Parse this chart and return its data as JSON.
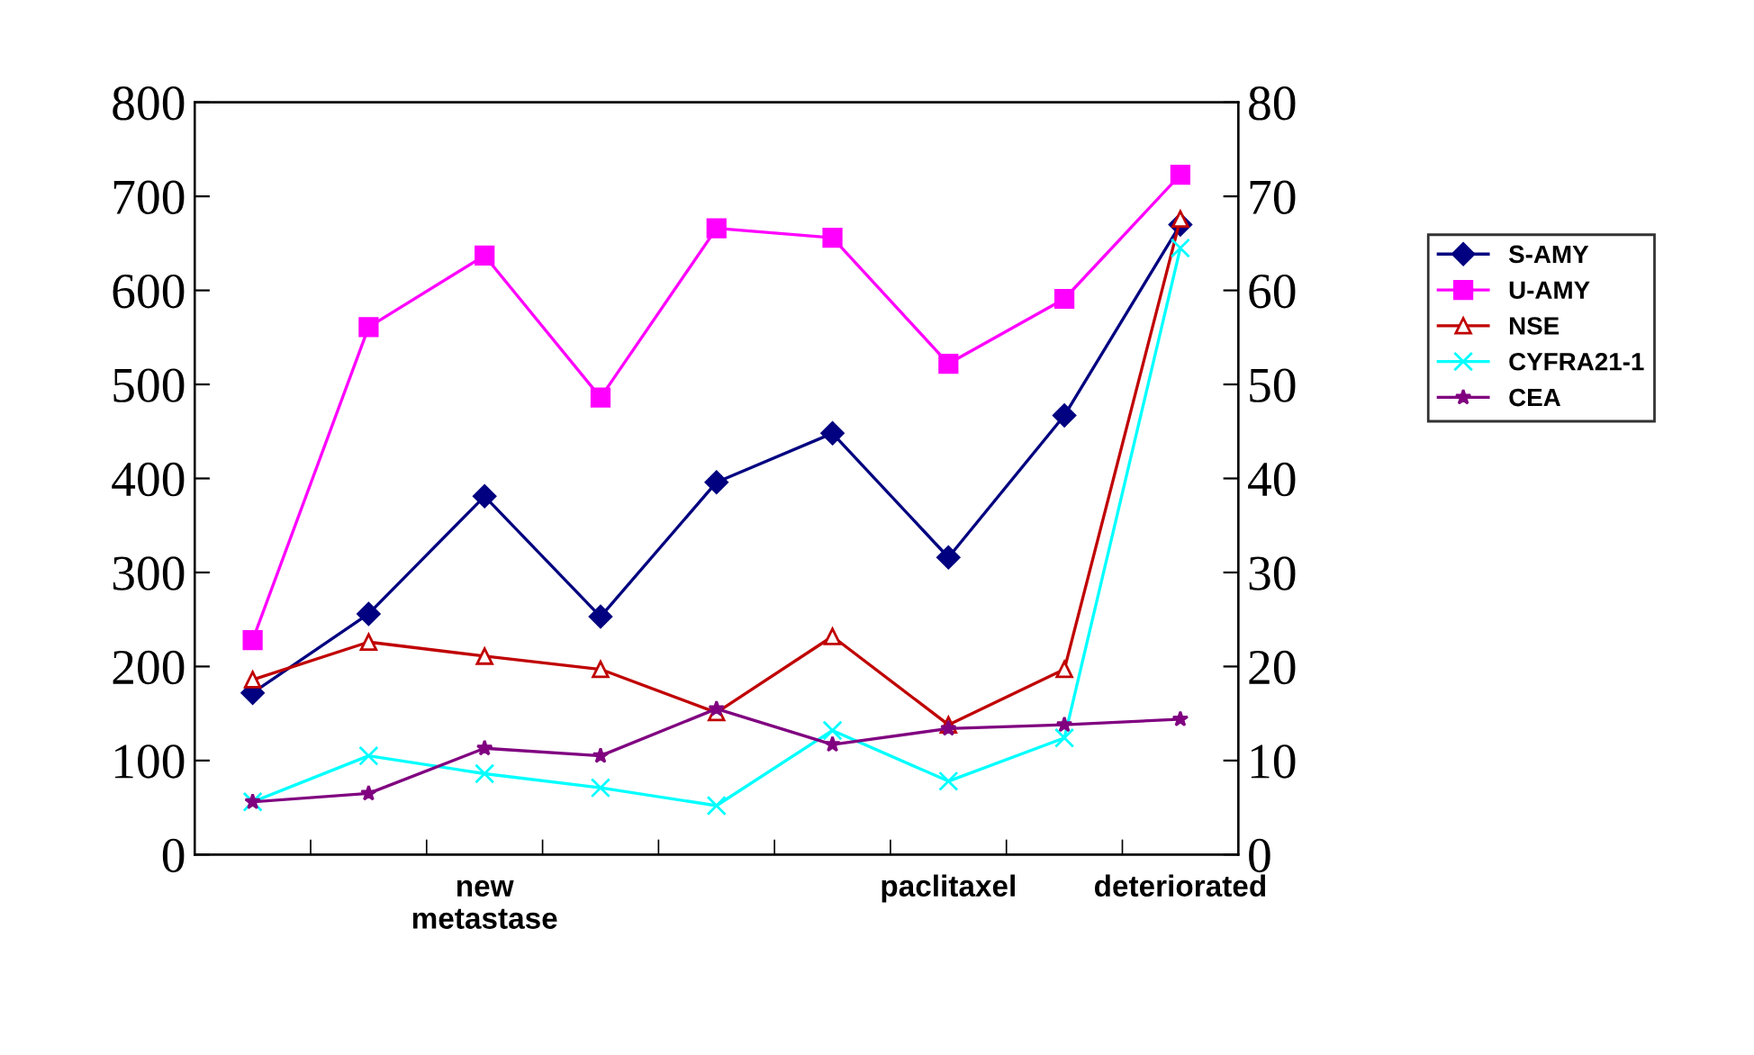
{
  "chart_data": {
    "type": "line",
    "categories": [
      null,
      null,
      "new\nmetastase",
      null,
      null,
      null,
      "paclitaxel",
      null,
      "deteriorated"
    ],
    "series": [
      {
        "name": "S-AMY",
        "color": "#000080",
        "marker": "diamond",
        "values": [
          172,
          256,
          381,
          253,
          396,
          448,
          316,
          467,
          670
        ]
      },
      {
        "name": "U-AMY",
        "color": "#ff00ff",
        "marker": "square",
        "values": [
          228,
          561,
          637,
          486,
          666,
          656,
          522,
          591,
          723
        ]
      },
      {
        "name": "NSE",
        "color": "#c00000",
        "marker": "triangle",
        "axis": "y2",
        "values": [
          18.6,
          22.6,
          21.1,
          19.7,
          15.1,
          23.2,
          13.8,
          19.7,
          67.6
        ]
      },
      {
        "name": "CYFRA21-1",
        "color": "#00ffff",
        "marker": "cross",
        "axis": "y2",
        "values": [
          5.6,
          10.5,
          8.6,
          7.1,
          5.2,
          13.2,
          7.8,
          12.4,
          64.5
        ]
      },
      {
        "name": "CEA",
        "color": "#800080",
        "marker": "star",
        "axis": "y2",
        "values": [
          5.6,
          6.5,
          11.3,
          10.5,
          15.5,
          11.7,
          13.4,
          13.8,
          14.4
        ]
      }
    ],
    "ylim": [
      0,
      800
    ],
    "yticks": [
      0,
      100,
      200,
      300,
      400,
      500,
      600,
      700,
      800
    ],
    "y2lim": [
      0,
      80
    ],
    "y2ticks": [
      0,
      10,
      20,
      30,
      40,
      50,
      60,
      70,
      80
    ],
    "grid": false,
    "legend": "right",
    "line_style": "solid"
  }
}
